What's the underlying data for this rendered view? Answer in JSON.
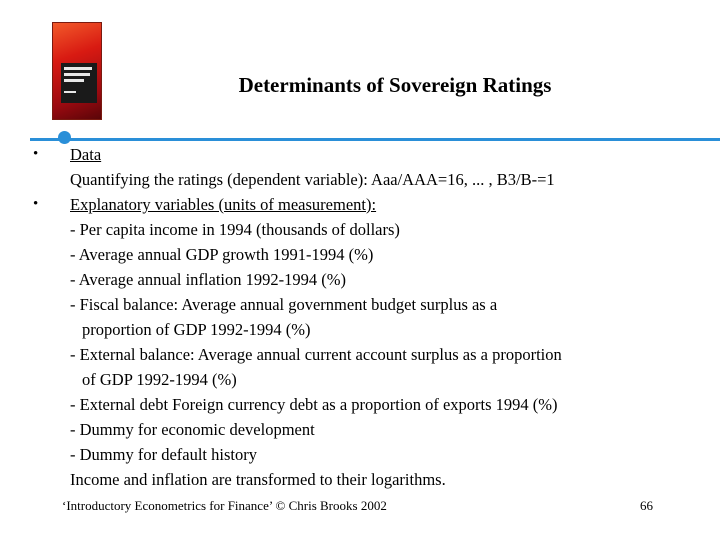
{
  "slide": {
    "title": "Determinants of Sovereign Ratings",
    "bullets": [
      {
        "marker": "•",
        "heading": "Data",
        "lines": [
          "Quantifying the ratings (dependent variable): Aaa/AAA=16, ... , B3/B-=1"
        ]
      },
      {
        "marker": "•",
        "heading": "Explanatory variables (units of measurement):",
        "lines": [
          "- Per capita income in 1994 (thousands of dollars)",
          "- Average annual GDP growth 1991-1994 (%)",
          "- Average annual inflation 1992-1994 (%)",
          "- Fiscal balance: Average annual government budget surplus as a",
          "proportion of GDP 1992-1994 (%)",
          "- External balance: Average annual current account surplus as a proportion",
          "of GDP 1992-1994 (%)",
          "- External debt Foreign currency debt as a proportion of exports 1994 (%)",
          "- Dummy for economic development",
          "- Dummy for default history",
          "Income and inflation are transformed to their logarithms."
        ]
      }
    ]
  },
  "footer": {
    "citation": "‘Introductory Econometrics for Finance’ © Chris Brooks 2002",
    "page_number": "66"
  },
  "colors": {
    "accent": "#2a8fd8"
  }
}
